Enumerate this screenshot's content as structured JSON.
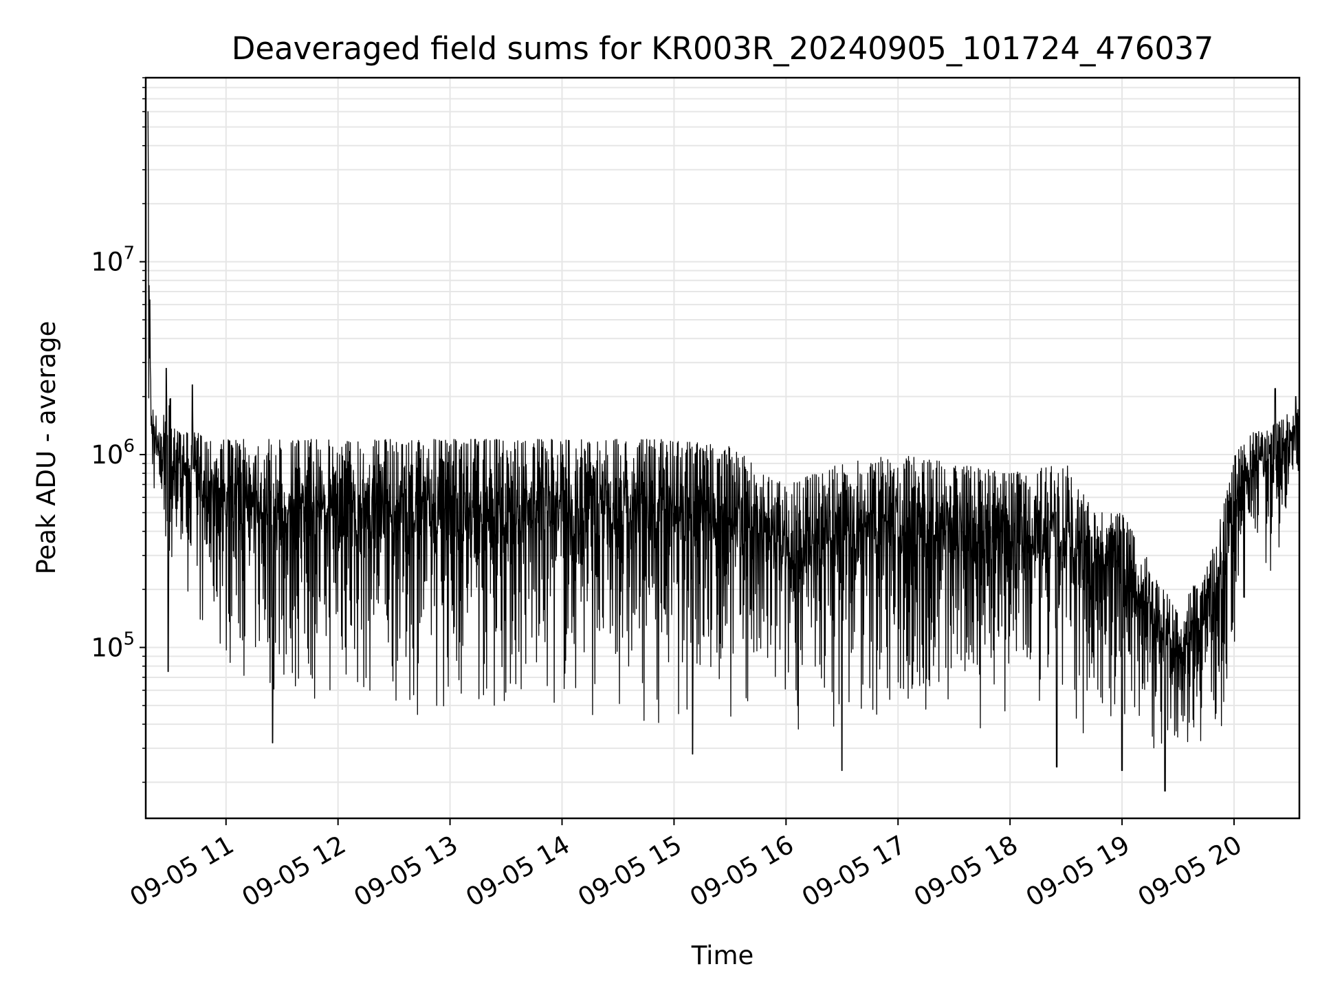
{
  "chart_data": {
    "type": "line",
    "title": "Deaveraged field sums for KR003R_20240905_101724_476037",
    "xlabel": "Time",
    "ylabel": "Peak ADU - average",
    "x_range": [
      "2024-09-05 10:17",
      "2024-09-05 20:35"
    ],
    "y_range": [
      13000,
      90000000
    ],
    "y_scale": "log",
    "grid": true,
    "legend": "none",
    "line_color": "#000000",
    "grid_color": "#e6e6e6",
    "x_ticks": [
      {
        "value": "2024-09-05 11:00",
        "label": "09-05 11"
      },
      {
        "value": "2024-09-05 12:00",
        "label": "09-05 12"
      },
      {
        "value": "2024-09-05 13:00",
        "label": "09-05 13"
      },
      {
        "value": "2024-09-05 14:00",
        "label": "09-05 14"
      },
      {
        "value": "2024-09-05 15:00",
        "label": "09-05 15"
      },
      {
        "value": "2024-09-05 16:00",
        "label": "09-05 16"
      },
      {
        "value": "2024-09-05 17:00",
        "label": "09-05 17"
      },
      {
        "value": "2024-09-05 18:00",
        "label": "09-05 18"
      },
      {
        "value": "2024-09-05 19:00",
        "label": "09-05 19"
      },
      {
        "value": "2024-09-05 20:00",
        "label": "09-05 20"
      }
    ],
    "y_ticks": [
      {
        "value": 100000,
        "base": "10",
        "exp": "5"
      },
      {
        "value": 1000000,
        "base": "10",
        "exp": "6"
      },
      {
        "value": 10000000,
        "base": "10",
        "exp": "7"
      }
    ],
    "series": [
      {
        "envelope": [
          {
            "t": "2024-09-05 10:18",
            "high": 60000000,
            "low": 600000
          },
          {
            "t": "2024-09-05 10:20",
            "high": 2000000,
            "low": 600000
          },
          {
            "t": "2024-09-05 10:25",
            "high": 1300000,
            "low": 500000
          },
          {
            "t": "2024-09-05 10:30",
            "high": 2500000,
            "low": 75000
          },
          {
            "t": "2024-09-05 10:35",
            "high": 1300000,
            "low": 300000
          },
          {
            "t": "2024-09-05 10:45",
            "high": 1300000,
            "low": 110000
          },
          {
            "t": "2024-09-05 11:00",
            "high": 1200000,
            "low": 75000
          },
          {
            "t": "2024-09-05 11:30",
            "high": 1200000,
            "low": 45000
          },
          {
            "t": "2024-09-05 12:00",
            "high": 1200000,
            "low": 45000
          },
          {
            "t": "2024-09-05 12:30",
            "high": 1200000,
            "low": 45000
          },
          {
            "t": "2024-09-05 13:00",
            "high": 1200000,
            "low": 40000
          },
          {
            "t": "2024-09-05 13:30",
            "high": 1200000,
            "low": 40000
          },
          {
            "t": "2024-09-05 14:00",
            "high": 1200000,
            "low": 42000
          },
          {
            "t": "2024-09-05 14:30",
            "high": 1200000,
            "low": 40000
          },
          {
            "t": "2024-09-05 15:00",
            "high": 1200000,
            "low": 38000
          },
          {
            "t": "2024-09-05 15:30",
            "high": 1100000,
            "low": 36000
          },
          {
            "t": "2024-09-05 16:00",
            "high": 700000,
            "low": 35000
          },
          {
            "t": "2024-09-05 16:30",
            "high": 900000,
            "low": 35000
          },
          {
            "t": "2024-09-05 17:00",
            "high": 1000000,
            "low": 33000
          },
          {
            "t": "2024-09-05 17:30",
            "high": 900000,
            "low": 35000
          },
          {
            "t": "2024-09-05 18:00",
            "high": 800000,
            "low": 35000
          },
          {
            "t": "2024-09-05 18:30",
            "high": 900000,
            "low": 30000
          },
          {
            "t": "2024-09-05 18:45",
            "high": 500000,
            "low": 35000
          },
          {
            "t": "2024-09-05 19:00",
            "high": 500000,
            "low": 30000
          },
          {
            "t": "2024-09-05 19:30",
            "high": 150000,
            "low": 30000
          },
          {
            "t": "2024-09-05 19:50",
            "high": 350000,
            "low": 30000
          },
          {
            "t": "2024-09-05 20:00",
            "high": 1000000,
            "low": 40000
          },
          {
            "t": "2024-09-05 20:10",
            "high": 1300000,
            "low": 400000
          },
          {
            "t": "2024-09-05 20:20",
            "high": 1400000,
            "low": 200000
          },
          {
            "t": "2024-09-05 20:35",
            "high": 1800000,
            "low": 800000
          }
        ],
        "spikes": [
          {
            "t": "2024-09-05 10:18",
            "value": 60000000
          },
          {
            "t": "2024-09-05 10:28",
            "value": 2800000
          },
          {
            "t": "2024-09-05 10:29",
            "value": 75000
          },
          {
            "t": "2024-09-05 10:42",
            "value": 2300000
          },
          {
            "t": "2024-09-05 11:25",
            "value": 32000
          },
          {
            "t": "2024-09-05 15:10",
            "value": 28000
          },
          {
            "t": "2024-09-05 16:30",
            "value": 23000
          },
          {
            "t": "2024-09-05 18:25",
            "value": 24000
          },
          {
            "t": "2024-09-05 19:00",
            "value": 23000
          },
          {
            "t": "2024-09-05 19:23",
            "value": 18000
          },
          {
            "t": "2024-09-05 20:22",
            "value": 2200000
          },
          {
            "t": "2024-09-05 20:33",
            "value": 2000000
          }
        ]
      }
    ]
  }
}
